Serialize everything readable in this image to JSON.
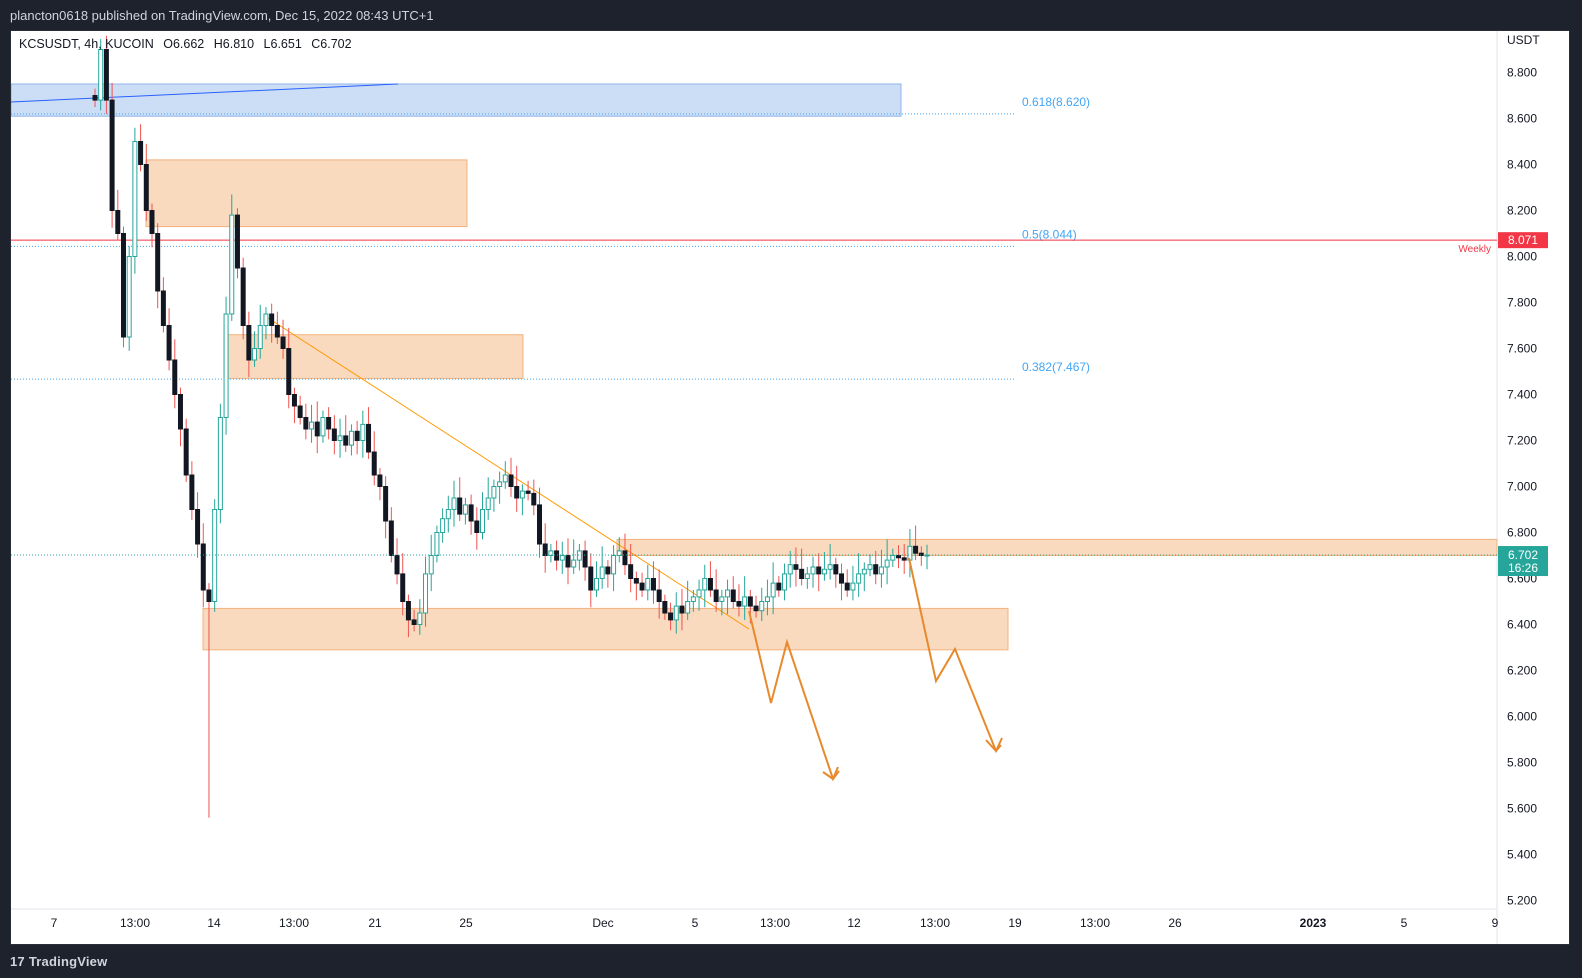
{
  "header": {
    "published_text": "plancton0618 published on TradingView.com, Dec 15, 2022 08:43 UTC+1"
  },
  "legend": {
    "symbol": "KCSUSDT, 4h, KUCOIN",
    "open": "O6.662",
    "high": "H6.810",
    "low": "L6.651",
    "close": "C6.702"
  },
  "footer": {
    "brand": "TradingView",
    "logo_icon": "tradingview-logo-icon"
  },
  "colors": {
    "up_candle": "#26a69a",
    "down_candle": "#131722",
    "weekly_line": "#f23645",
    "fib_line": "#42a5f5",
    "zone_orange": "#f7cba2",
    "zone_blue": "#c3d7f5",
    "trend_line": "#ff9800",
    "projection": "#e8892c",
    "last_price_bg": "#26a69a"
  },
  "chart_data": {
    "type": "candlestick",
    "symbol": "KCSUSDT",
    "interval": "4h",
    "exchange": "KUCOIN",
    "currency_label": "USDT",
    "ylim": [
      5.2,
      8.9
    ],
    "y_ticks": [
      "8.800",
      "8.600",
      "8.400",
      "8.200",
      "8.000",
      "7.800",
      "7.600",
      "7.400",
      "7.200",
      "7.000",
      "6.800",
      "6.600",
      "6.400",
      "6.200",
      "6.000",
      "5.800",
      "5.600",
      "5.400",
      "5.200"
    ],
    "x_ticks": [
      "7",
      "13:00",
      "14",
      "13:00",
      "21",
      "25",
      "Dec",
      "5",
      "13:00",
      "12",
      "13:00",
      "19",
      "13:00",
      "26",
      "2023",
      "5",
      "9"
    ],
    "last_price": {
      "value": 6.702,
      "label": "6.702",
      "countdown": "16:26"
    },
    "horizontal_lines": [
      {
        "name": "Weekly",
        "value": 8.071,
        "label": "8.071",
        "color": "#f23645"
      }
    ],
    "fib_levels": [
      {
        "label": "0.618(8.620)",
        "value": 8.62
      },
      {
        "label": "0.5(8.044)",
        "value": 8.044
      },
      {
        "label": "0.382(7.467)",
        "value": 7.467
      }
    ],
    "zones": [
      {
        "color": "blue",
        "top": 8.75,
        "bottom": 8.61
      },
      {
        "color": "orange",
        "top": 8.42,
        "bottom": 8.13
      },
      {
        "color": "orange",
        "top": 7.66,
        "bottom": 7.47
      },
      {
        "color": "orange",
        "top": 6.77,
        "bottom": 6.7
      },
      {
        "color": "orange",
        "top": 6.47,
        "bottom": 6.29
      }
    ],
    "series": [
      {
        "close": [
          8.68,
          8.9,
          8.68,
          8.2,
          8.1,
          7.65,
          8.0,
          8.5,
          8.4,
          8.2,
          8.1,
          7.85,
          7.7,
          7.55,
          7.4,
          7.25,
          7.05,
          6.9,
          6.75,
          6.55,
          6.5,
          6.9,
          7.3,
          7.75,
          8.18,
          7.95,
          7.7,
          7.55,
          7.6,
          7.7,
          7.75,
          7.7,
          7.65,
          7.6,
          7.4,
          7.35,
          7.3,
          7.25,
          7.28,
          7.22,
          7.3,
          7.25,
          7.2,
          7.22,
          7.18,
          7.24,
          7.2,
          7.27,
          7.15,
          7.05,
          7.0,
          6.85,
          6.7,
          6.62,
          6.5,
          6.42,
          6.4,
          6.45,
          6.62,
          6.7,
          6.8,
          6.86,
          6.9,
          6.95,
          6.88,
          6.92,
          6.85,
          6.8,
          6.9,
          6.95,
          7.0,
          7.02,
          7.05,
          7.0,
          6.95,
          6.98,
          6.97,
          6.92,
          6.75,
          6.7,
          6.72,
          6.68,
          6.7,
          6.65,
          6.68,
          6.72,
          6.65,
          6.55,
          6.6,
          6.65,
          6.62,
          6.7,
          6.72,
          6.66,
          6.6,
          6.58,
          6.55,
          6.6,
          6.55,
          6.5,
          6.45,
          6.42,
          6.48,
          6.45,
          6.5,
          6.52,
          6.55,
          6.6,
          6.55,
          6.5,
          6.52,
          6.55,
          6.5,
          6.48,
          6.52,
          6.48,
          6.46,
          6.5,
          6.52,
          6.58,
          6.55,
          6.62,
          6.66,
          6.64,
          6.6,
          6.62,
          6.65,
          6.62,
          6.64,
          6.66,
          6.62,
          6.58,
          6.55,
          6.58,
          6.62,
          6.64,
          6.66,
          6.62,
          6.65,
          6.68,
          6.7,
          6.69,
          6.68,
          6.74,
          6.71,
          6.7,
          6.702
        ]
      }
    ]
  }
}
